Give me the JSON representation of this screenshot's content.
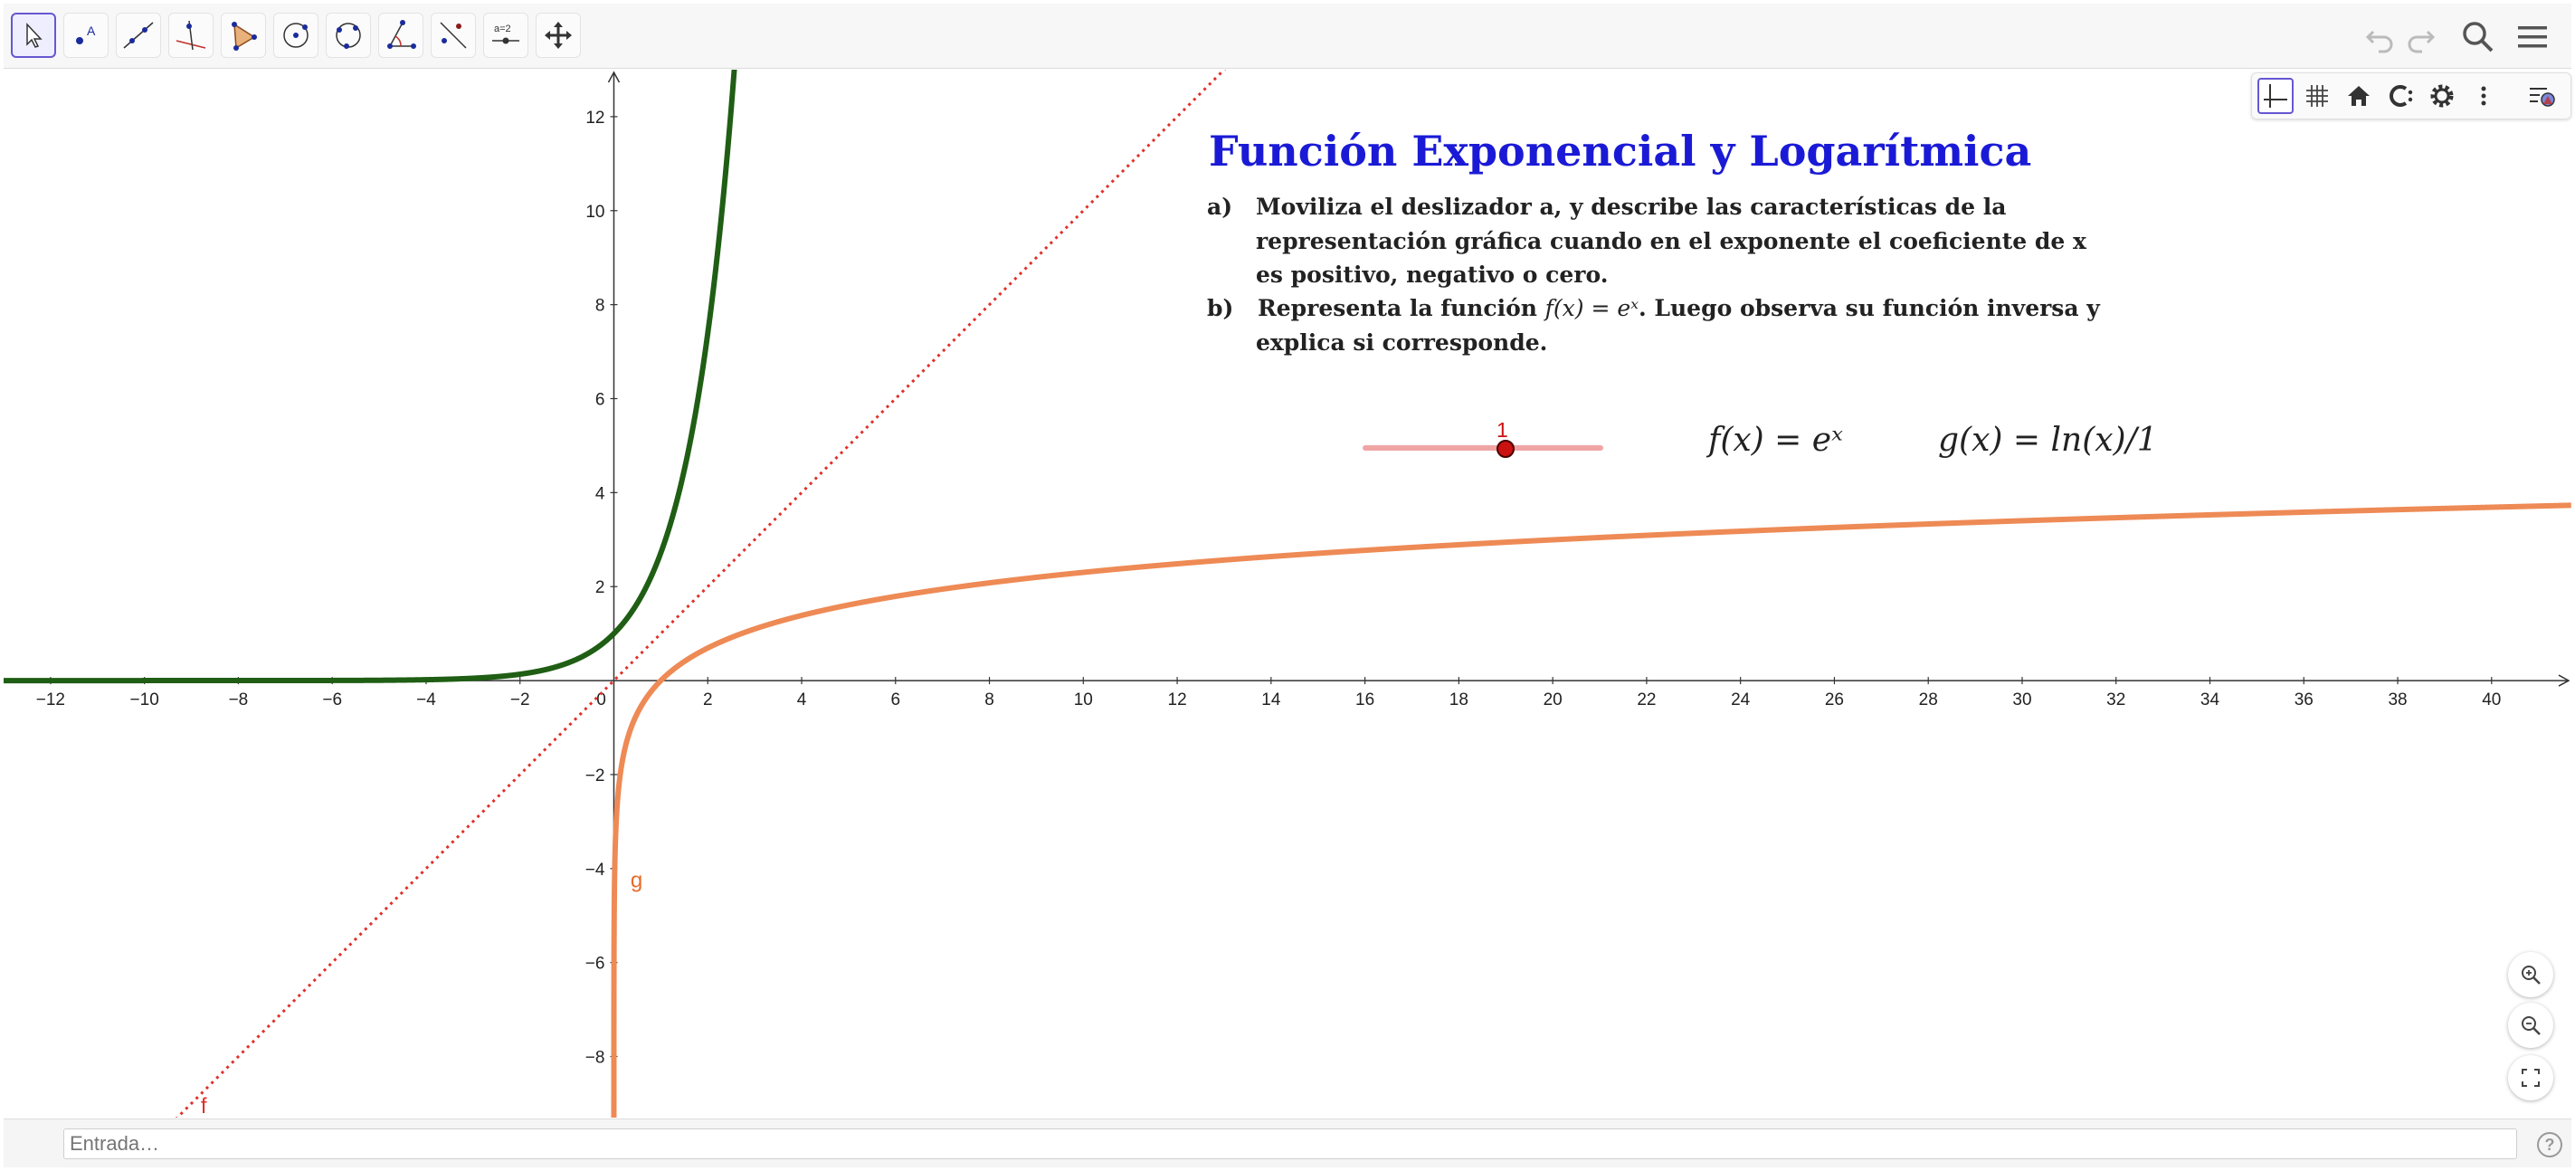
{
  "toolbar": {
    "tools": [
      {
        "name": "move-tool",
        "icon": "cursor-icon"
      },
      {
        "name": "point-tool",
        "icon": "point-icon"
      },
      {
        "name": "line-tool",
        "icon": "line-icon"
      },
      {
        "name": "perpendicular-tool",
        "icon": "perpendicular-icon"
      },
      {
        "name": "polygon-tool",
        "icon": "polygon-icon"
      },
      {
        "name": "circle-tool",
        "icon": "circle-icon"
      },
      {
        "name": "circle-through-points-tool",
        "icon": "circle-points-icon"
      },
      {
        "name": "angle-tool",
        "icon": "angle-icon"
      },
      {
        "name": "reflect-tool",
        "icon": "reflect-icon"
      },
      {
        "name": "slider-tool",
        "icon": "slider-icon",
        "label": "a=2"
      },
      {
        "name": "move-view-tool",
        "icon": "move-view-icon"
      }
    ],
    "right": [
      "undo-icon",
      "redo-icon",
      "search-icon",
      "menu-icon"
    ]
  },
  "stylebar": [
    "axes-icon",
    "grid-icon",
    "home-icon",
    "point-capture-icon",
    "settings-icon",
    "more-icon",
    "graphics-style-icon"
  ],
  "content": {
    "title": "Función Exponencial y Logarítmica",
    "item_a_label": "a)",
    "item_a_line1": "Moviliza el deslizador a,  y  describe las características de la",
    "item_a_line2": "representación gráfica cuando en el exponente el coeficiente de x",
    "item_a_line3": "es positivo, negativo o cero.",
    "item_b_label": "b)",
    "item_b_line1_pre": "Representa la función ",
    "item_b_formula": "f(x) = eˣ",
    "item_b_line1_post": ". Luego observa su función inversa y",
    "item_b_line2": "explica si corresponde.",
    "slider_value": "1",
    "formula_f": "f(x) = eˣ",
    "formula_g": "g(x) = ln(x)/1"
  },
  "graph": {
    "x_range": [
      -13,
      41.7
    ],
    "y_range": [
      -9.3,
      13
    ],
    "x_tick_labels": [
      "−12",
      "−10",
      "−8",
      "−6",
      "−4",
      "−2",
      "0",
      "2",
      "4",
      "6",
      "8",
      "10",
      "12",
      "14",
      "16",
      "18",
      "20",
      "22",
      "24",
      "26",
      "28",
      "30",
      "32",
      "34",
      "36",
      "38",
      "40"
    ],
    "y_tick_labels": [
      "12",
      "10",
      "8",
      "6",
      "4",
      "2",
      "−2",
      "−4",
      "−6",
      "−8"
    ],
    "curves": [
      {
        "name": "f",
        "label": "f",
        "expression": "y = x",
        "style": "dotted",
        "color": "#e0302a"
      },
      {
        "name": "exp",
        "label": "",
        "expression": "e^x",
        "style": "solid",
        "color": "#1f5e14"
      },
      {
        "name": "g",
        "label": "g",
        "expression": "ln(x)/1",
        "style": "solid",
        "color": "#ee8a55"
      }
    ],
    "label_g": "g",
    "label_f": "f"
  },
  "slider": {
    "value": 1,
    "min": -5,
    "max": 5,
    "track_color": "#f0a5a5",
    "knob_color": "#cc1111",
    "value_color": "#cc1111"
  },
  "input_bar": {
    "placeholder": "Entrada…",
    "help": "?"
  },
  "colors": {
    "title": "#1a1ad6",
    "exp_curve": "#1f5e14",
    "log_curve": "#ee8a55",
    "identity_line": "#e0302a"
  }
}
